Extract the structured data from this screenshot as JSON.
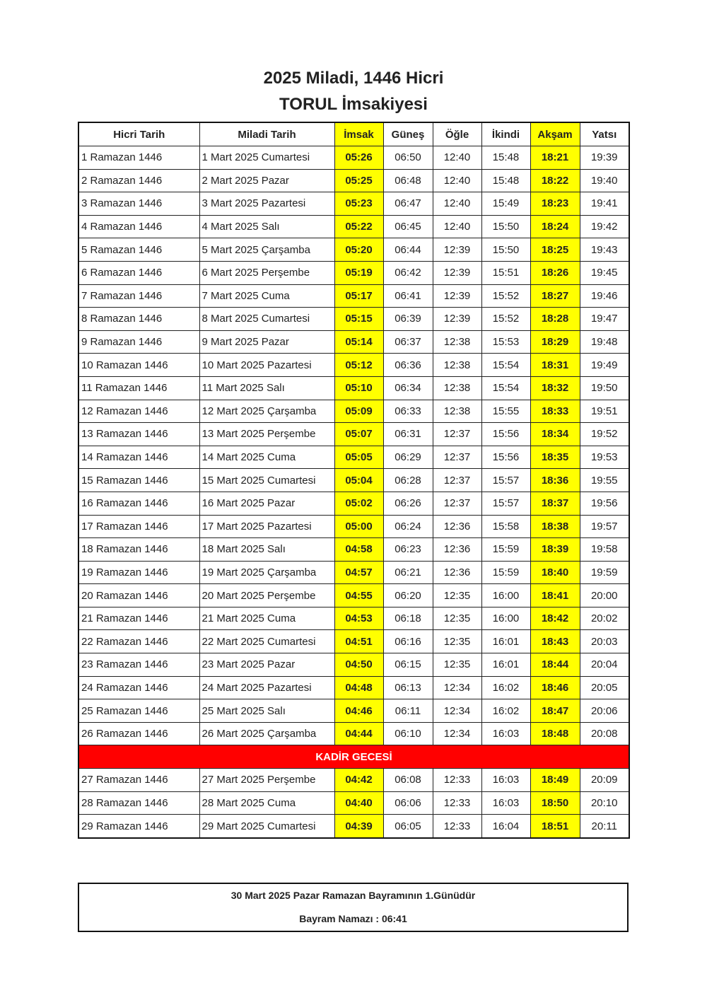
{
  "title_line1": "2025 Miladi, 1446 Hicri",
  "title_line2": "TORUL İmsakiyesi",
  "colors": {
    "highlight": "#ffff00",
    "kadir_row": "#ff0000"
  },
  "columns": [
    "Hicri Tarih",
    "Miladi Tarih",
    "İmsak",
    "Güneş",
    "Öğle",
    "İkindi",
    "Akşam",
    "Yatsı"
  ],
  "rows": [
    [
      "1 Ramazan 1446",
      "1 Mart 2025 Cumartesi",
      "05:26",
      "06:50",
      "12:40",
      "15:48",
      "18:21",
      "19:39"
    ],
    [
      "2 Ramazan 1446",
      "2 Mart 2025 Pazar",
      "05:25",
      "06:48",
      "12:40",
      "15:48",
      "18:22",
      "19:40"
    ],
    [
      "3 Ramazan 1446",
      "3 Mart 2025 Pazartesi",
      "05:23",
      "06:47",
      "12:40",
      "15:49",
      "18:23",
      "19:41"
    ],
    [
      "4 Ramazan 1446",
      "4 Mart 2025 Salı",
      "05:22",
      "06:45",
      "12:40",
      "15:50",
      "18:24",
      "19:42"
    ],
    [
      "5 Ramazan 1446",
      "5 Mart 2025 Çarşamba",
      "05:20",
      "06:44",
      "12:39",
      "15:50",
      "18:25",
      "19:43"
    ],
    [
      "6 Ramazan 1446",
      "6 Mart 2025 Perşembe",
      "05:19",
      "06:42",
      "12:39",
      "15:51",
      "18:26",
      "19:45"
    ],
    [
      "7 Ramazan 1446",
      "7 Mart 2025 Cuma",
      "05:17",
      "06:41",
      "12:39",
      "15:52",
      "18:27",
      "19:46"
    ],
    [
      "8 Ramazan 1446",
      "8 Mart 2025 Cumartesi",
      "05:15",
      "06:39",
      "12:39",
      "15:52",
      "18:28",
      "19:47"
    ],
    [
      "9 Ramazan 1446",
      "9 Mart 2025 Pazar",
      "05:14",
      "06:37",
      "12:38",
      "15:53",
      "18:29",
      "19:48"
    ],
    [
      "10 Ramazan 1446",
      "10 Mart 2025 Pazartesi",
      "05:12",
      "06:36",
      "12:38",
      "15:54",
      "18:31",
      "19:49"
    ],
    [
      "11 Ramazan 1446",
      "11 Mart 2025 Salı",
      "05:10",
      "06:34",
      "12:38",
      "15:54",
      "18:32",
      "19:50"
    ],
    [
      "12 Ramazan 1446",
      "12 Mart 2025 Çarşamba",
      "05:09",
      "06:33",
      "12:38",
      "15:55",
      "18:33",
      "19:51"
    ],
    [
      "13 Ramazan 1446",
      "13 Mart 2025 Perşembe",
      "05:07",
      "06:31",
      "12:37",
      "15:56",
      "18:34",
      "19:52"
    ],
    [
      "14 Ramazan 1446",
      "14 Mart 2025 Cuma",
      "05:05",
      "06:29",
      "12:37",
      "15:56",
      "18:35",
      "19:53"
    ],
    [
      "15 Ramazan 1446",
      "15 Mart 2025 Cumartesi",
      "05:04",
      "06:28",
      "12:37",
      "15:57",
      "18:36",
      "19:55"
    ],
    [
      "16 Ramazan 1446",
      "16 Mart 2025 Pazar",
      "05:02",
      "06:26",
      "12:37",
      "15:57",
      "18:37",
      "19:56"
    ],
    [
      "17 Ramazan 1446",
      "17 Mart 2025 Pazartesi",
      "05:00",
      "06:24",
      "12:36",
      "15:58",
      "18:38",
      "19:57"
    ],
    [
      "18 Ramazan 1446",
      "18 Mart 2025 Salı",
      "04:58",
      "06:23",
      "12:36",
      "15:59",
      "18:39",
      "19:58"
    ],
    [
      "19 Ramazan 1446",
      "19 Mart 2025 Çarşamba",
      "04:57",
      "06:21",
      "12:36",
      "15:59",
      "18:40",
      "19:59"
    ],
    [
      "20 Ramazan 1446",
      "20 Mart 2025 Perşembe",
      "04:55",
      "06:20",
      "12:35",
      "16:00",
      "18:41",
      "20:00"
    ],
    [
      "21 Ramazan 1446",
      "21 Mart 2025 Cuma",
      "04:53",
      "06:18",
      "12:35",
      "16:00",
      "18:42",
      "20:02"
    ],
    [
      "22 Ramazan 1446",
      "22 Mart 2025 Cumartesi",
      "04:51",
      "06:16",
      "12:35",
      "16:01",
      "18:43",
      "20:03"
    ],
    [
      "23 Ramazan 1446",
      "23 Mart 2025 Pazar",
      "04:50",
      "06:15",
      "12:35",
      "16:01",
      "18:44",
      "20:04"
    ],
    [
      "24 Ramazan 1446",
      "24 Mart 2025 Pazartesi",
      "04:48",
      "06:13",
      "12:34",
      "16:02",
      "18:46",
      "20:05"
    ],
    [
      "25 Ramazan 1446",
      "25 Mart 2025 Salı",
      "04:46",
      "06:11",
      "12:34",
      "16:02",
      "18:47",
      "20:06"
    ],
    [
      "26 Ramazan 1446",
      "26 Mart 2025 Çarşamba",
      "04:44",
      "06:10",
      "12:34",
      "16:03",
      "18:48",
      "20:08"
    ]
  ],
  "kadir_label": "KADİR GECESİ",
  "rows_after": [
    [
      "27 Ramazan 1446",
      "27 Mart 2025 Perşembe",
      "04:42",
      "06:08",
      "12:33",
      "16:03",
      "18:49",
      "20:09"
    ],
    [
      "28 Ramazan 1446",
      "28 Mart 2025 Cuma",
      "04:40",
      "06:06",
      "12:33",
      "16:03",
      "18:50",
      "20:10"
    ],
    [
      "29 Ramazan 1446",
      "29 Mart 2025 Cumartesi",
      "04:39",
      "06:05",
      "12:33",
      "16:04",
      "18:51",
      "20:11"
    ]
  ],
  "footer": {
    "line1": "30 Mart 2025 Pazar Ramazan Bayramının 1.Günüdür",
    "line2": "Bayram Namazı : 06:41"
  }
}
